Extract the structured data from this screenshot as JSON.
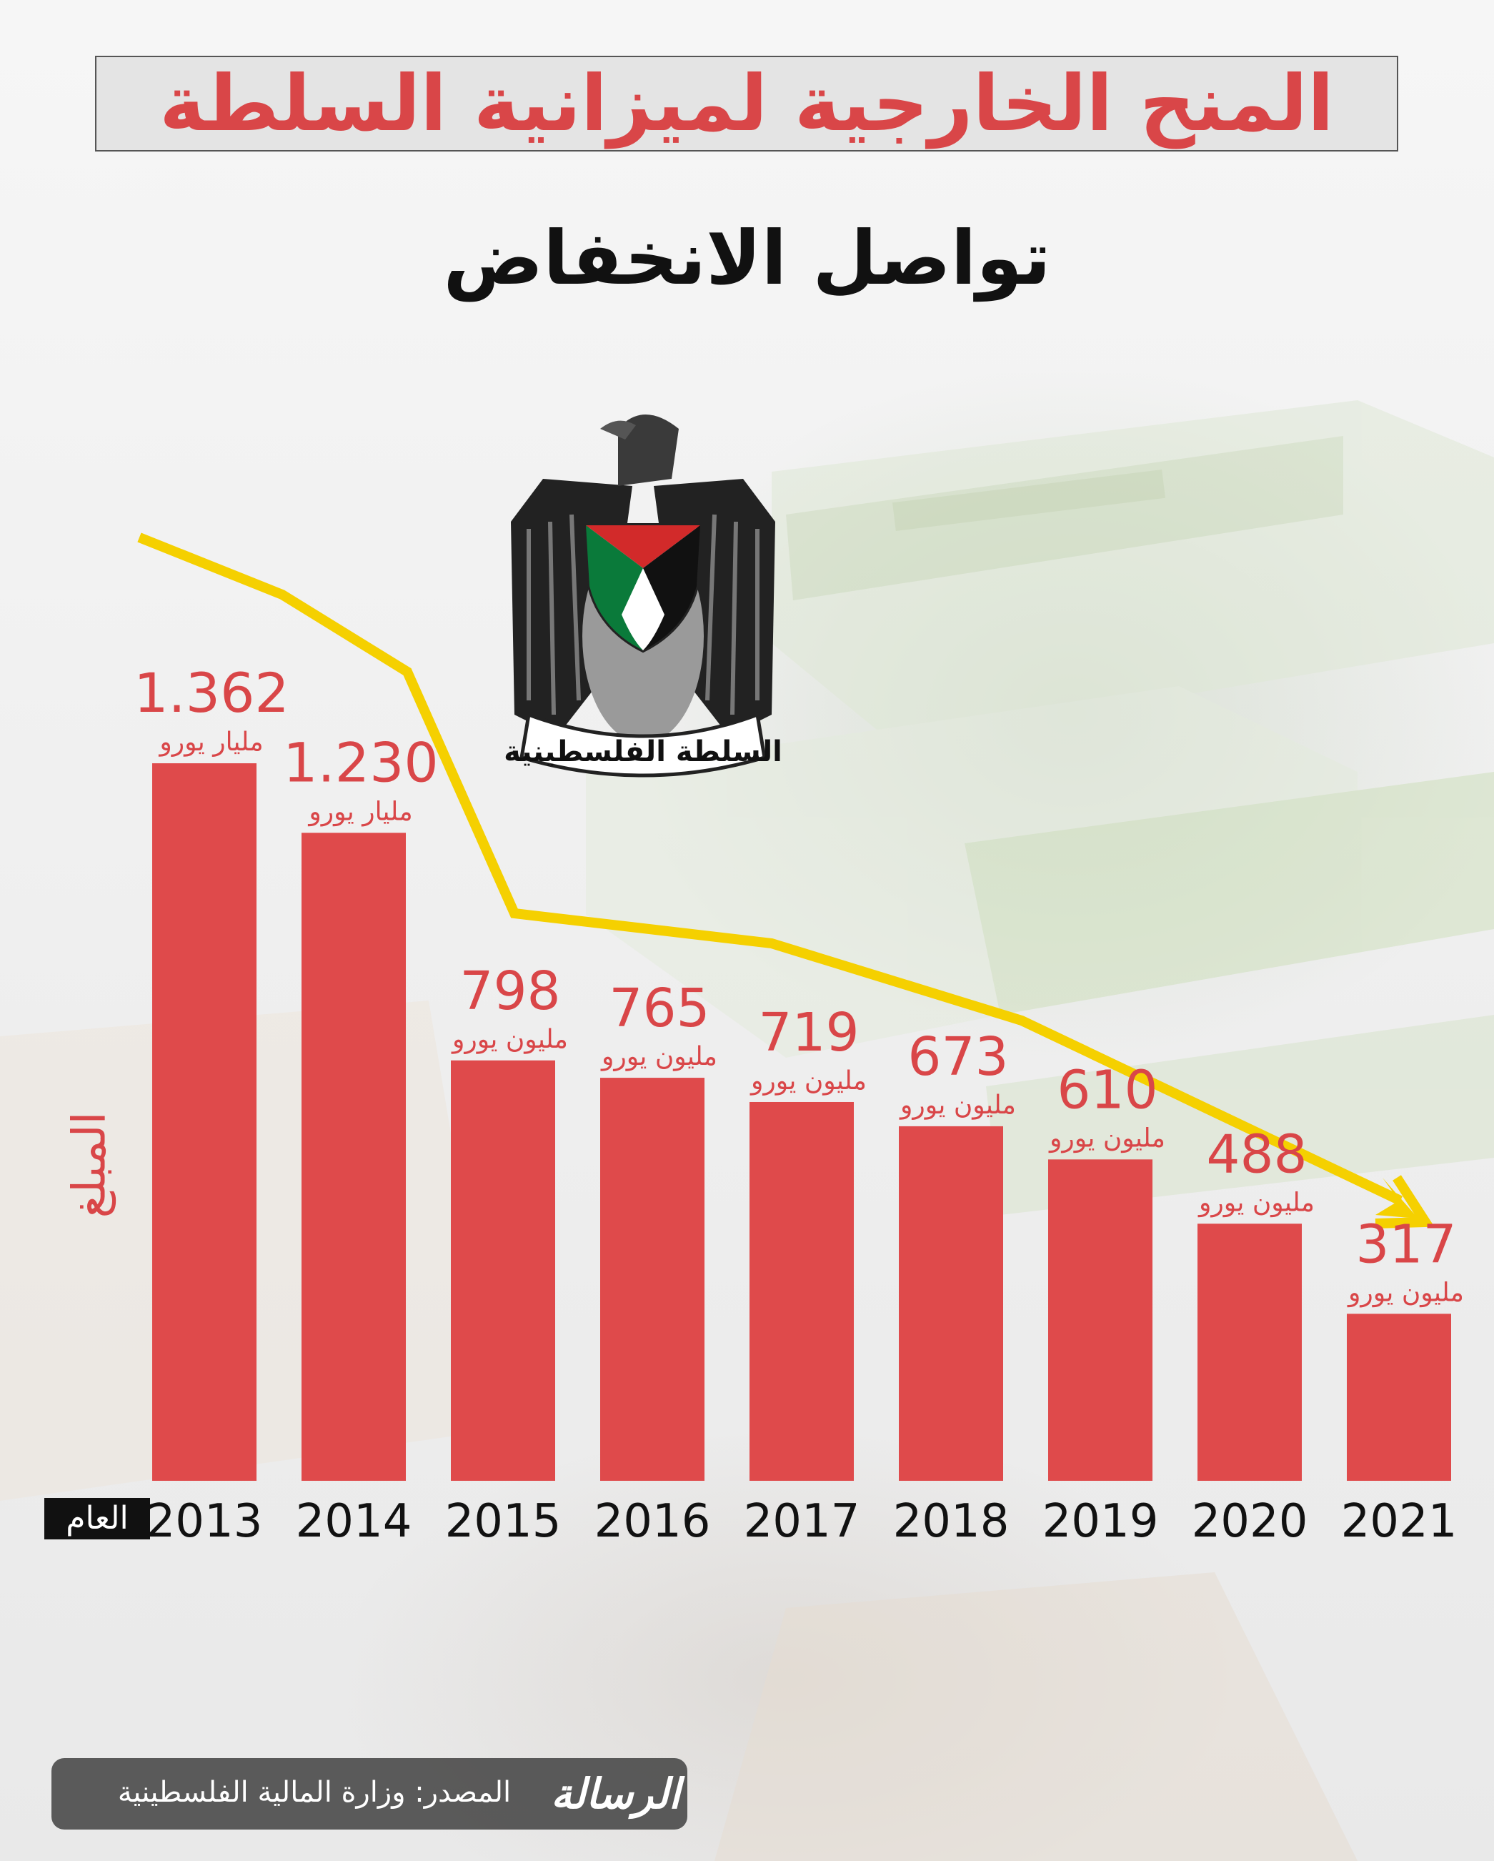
{
  "title": "المنح الخارجية لميزانية السلطة",
  "subtitle": "تواصل الانخفاض",
  "emblem_caption": "السلطة الفلسطينية",
  "footer": {
    "source": "المصدر: وزارة المالية الفلسطينية",
    "logo_text": "الرسالة"
  },
  "colors": {
    "bar": "#df4a4b",
    "label": "#d94648",
    "trend_line": "#f5d000",
    "title": "#d94648"
  },
  "chart_data": {
    "type": "bar",
    "title": "المنح الخارجية لميزانية السلطة",
    "subtitle": "تواصل الانخفاض",
    "xlabel": "العام",
    "ylabel": "المبلغ",
    "categories": [
      "2013",
      "2014",
      "2015",
      "2016",
      "2017",
      "2018",
      "2019",
      "2020",
      "2021"
    ],
    "values": [
      1362,
      1230,
      798,
      765,
      719,
      673,
      610,
      488,
      317
    ],
    "value_unit": "million EUR",
    "value_labels": [
      "1.362",
      "1.230",
      "798",
      "765",
      "719",
      "673",
      "610",
      "488",
      "317"
    ],
    "unit_labels": [
      "مليار يورو",
      "مليار يورو",
      "مليون يورو",
      "مليون يورو",
      "مليون يورو",
      "مليون يورو",
      "مليون يورو",
      "مليون يورو",
      "مليون يورو"
    ],
    "ylim": [
      0,
      1500
    ],
    "grid": false,
    "legend": "none",
    "trend_arrow": "decreasing"
  }
}
